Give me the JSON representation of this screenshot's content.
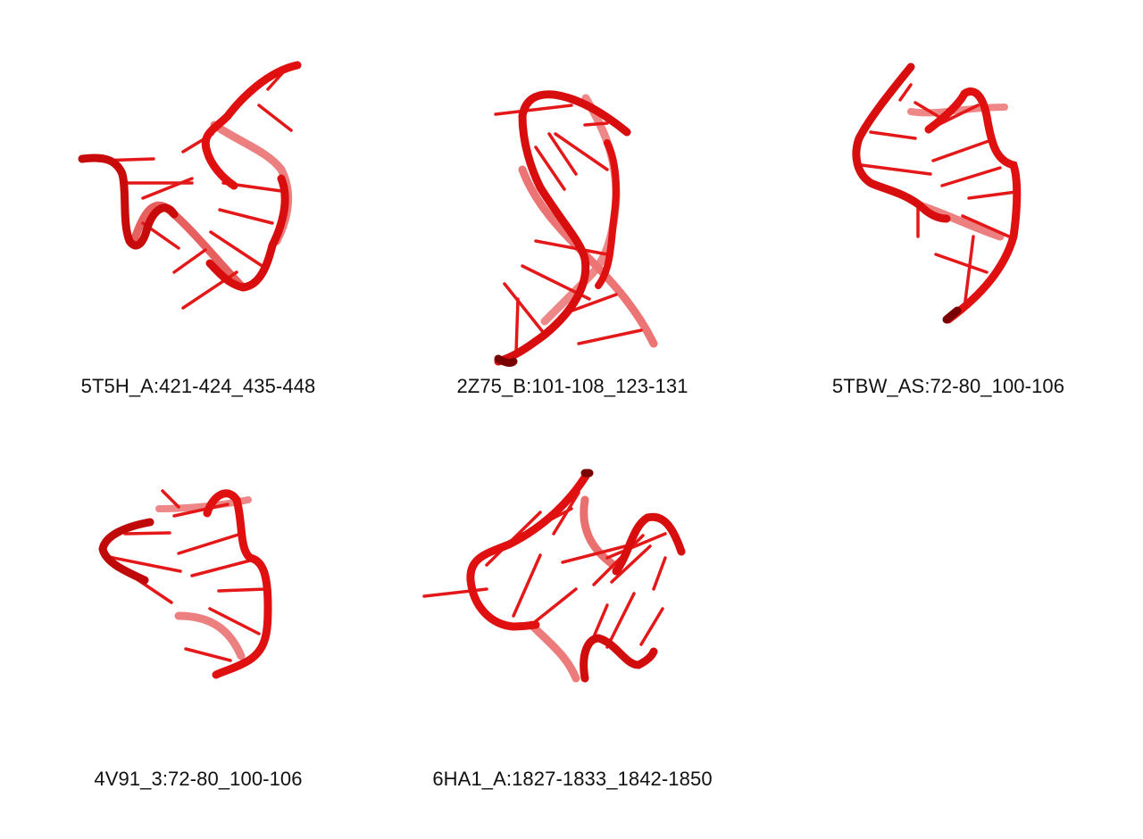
{
  "colors": {
    "backbone": "#e01010",
    "backbone_dark": "#7a0000",
    "backbone_light": "#f07070",
    "base": "#e81818",
    "base_dark": "#9a0000"
  },
  "structures": [
    {
      "label": "5T5H_A:421-424_435-448"
    },
    {
      "label": "2Z75_B:101-108_123-131"
    },
    {
      "label": "5TBW_AS:72-80_100-106"
    },
    {
      "label": "4V91_3:72-80_100-106"
    },
    {
      "label": "6HA1_A:1827-1833_1842-1850"
    }
  ]
}
